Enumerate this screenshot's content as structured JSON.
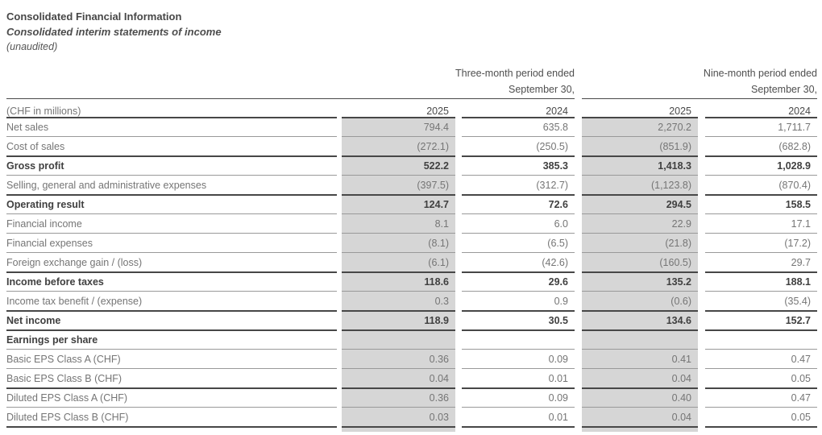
{
  "header": {
    "title": "Consolidated Financial Information",
    "subtitle": "Consolidated interim statements of income",
    "note": "(unaudited)"
  },
  "table": {
    "period_groups": [
      {
        "line1": "Three-month period ended",
        "line2": "September 30,"
      },
      {
        "line1": "Nine-month period ended",
        "line2": "September 30,"
      }
    ],
    "unit_label": "(CHF in millions)",
    "year_columns": [
      "2025",
      "2024",
      "2025",
      "2024"
    ],
    "rows": [
      {
        "label": "Net sales",
        "bold": false,
        "rule_above": true,
        "values": [
          "794.4",
          "635.8",
          "2,270.2",
          "1,711.7"
        ]
      },
      {
        "label": "Cost of sales",
        "bold": false,
        "rule_above": false,
        "values": [
          "(272.1)",
          "(250.5)",
          "(851.9)",
          "(682.8)"
        ]
      },
      {
        "label": "Gross profit",
        "bold": true,
        "rule_above": true,
        "values": [
          "522.2",
          "385.3",
          "1,418.3",
          "1,028.9"
        ]
      },
      {
        "label": "Selling, general and administrative expenses",
        "bold": false,
        "rule_above": false,
        "values": [
          "(397.5)",
          "(312.7)",
          "(1,123.8)",
          "(870.4)"
        ]
      },
      {
        "label": "Operating result",
        "bold": true,
        "rule_above": true,
        "values": [
          "124.7",
          "72.6",
          "294.5",
          "158.5"
        ]
      },
      {
        "label": "Financial income",
        "bold": false,
        "rule_above": false,
        "values": [
          "8.1",
          "6.0",
          "22.9",
          "17.1"
        ]
      },
      {
        "label": "Financial expenses",
        "bold": false,
        "rule_above": false,
        "values": [
          "(8.1)",
          "(6.5)",
          "(21.8)",
          "(17.2)"
        ]
      },
      {
        "label": "Foreign exchange gain / (loss)",
        "bold": false,
        "rule_above": false,
        "values": [
          "(6.1)",
          "(42.6)",
          "(160.5)",
          "29.7"
        ]
      },
      {
        "label": "Income before taxes",
        "bold": true,
        "rule_above": true,
        "values": [
          "118.6",
          "29.6",
          "135.2",
          "188.1"
        ]
      },
      {
        "label": "Income tax benefit / (expense)",
        "bold": false,
        "rule_above": false,
        "values": [
          "0.3",
          "0.9",
          "(0.6)",
          "(35.4)"
        ]
      },
      {
        "label": "Net income",
        "bold": true,
        "rule_above": true,
        "values": [
          "118.9",
          "30.5",
          "134.6",
          "152.7"
        ]
      },
      {
        "label": "Earnings per share",
        "bold": true,
        "rule_above": true,
        "values": [
          "",
          "",
          "",
          ""
        ]
      },
      {
        "label": "Basic EPS Class A (CHF)",
        "bold": false,
        "rule_above": false,
        "values": [
          "0.36",
          "0.09",
          "0.41",
          "0.47"
        ]
      },
      {
        "label": "Basic EPS Class B (CHF)",
        "bold": false,
        "rule_above": false,
        "values": [
          "0.04",
          "0.01",
          "0.04",
          "0.05"
        ]
      },
      {
        "label": "Diluted EPS Class A (CHF)",
        "bold": false,
        "rule_above": true,
        "values": [
          "0.36",
          "0.09",
          "0.40",
          "0.47"
        ]
      },
      {
        "label": "Diluted EPS Class B (CHF)",
        "bold": false,
        "rule_above": false,
        "values": [
          "0.03",
          "0.01",
          "0.04",
          "0.05"
        ]
      }
    ],
    "colors": {
      "shaded_column_bg": "#d6d6d6",
      "text_dark": "#404040",
      "text_gray": "#757575",
      "rule_dark": "#474747",
      "rule_light": "#999999"
    }
  }
}
